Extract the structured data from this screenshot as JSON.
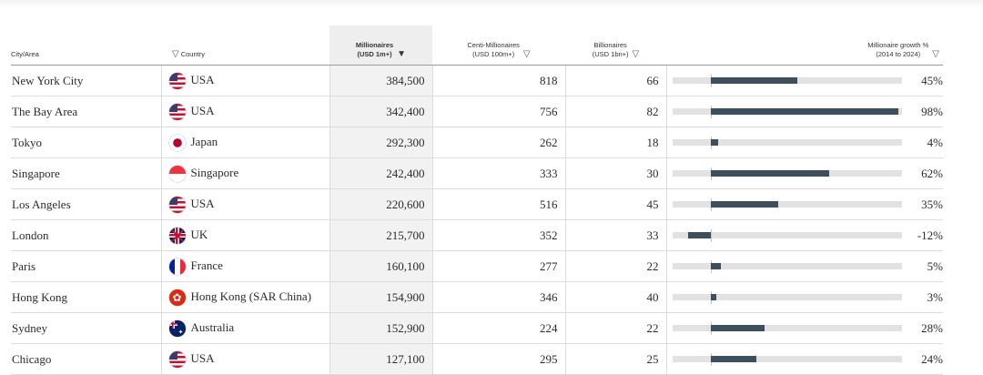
{
  "header": {
    "city": "City/Area",
    "country": "Country",
    "millionaires": [
      "Millionaires",
      "(USD 1m+)"
    ],
    "centi": [
      "Centi-Millionaires",
      "(USD 100m+)"
    ],
    "billionaires": [
      "Billionaires",
      "(USD 1bn+)"
    ],
    "growth": [
      "Millionaire growth %",
      "(2014 to 2024)"
    ],
    "sort_icon": "▽",
    "sorted_icon": "▼"
  },
  "growth_scale": {
    "min_percent": -20,
    "max_percent": 100
  },
  "rows": [
    {
      "city": "New York City",
      "flag": "flag-usa",
      "country": "USA",
      "millionaires": "384,500",
      "centi": "818",
      "billionaires": "66",
      "growth": "45%",
      "growth_value": 45
    },
    {
      "city": "The Bay Area",
      "flag": "flag-usa",
      "country": "USA",
      "millionaires": "342,400",
      "centi": "756",
      "billionaires": "82",
      "growth": "98%",
      "growth_value": 98
    },
    {
      "city": "Tokyo",
      "flag": "flag-japan",
      "country": "Japan",
      "millionaires": "292,300",
      "centi": "262",
      "billionaires": "18",
      "growth": "4%",
      "growth_value": 4
    },
    {
      "city": "Singapore",
      "flag": "flag-singapore",
      "country": "Singapore",
      "millionaires": "242,400",
      "centi": "333",
      "billionaires": "30",
      "growth": "62%",
      "growth_value": 62
    },
    {
      "city": "Los Angeles",
      "flag": "flag-usa",
      "country": "USA",
      "millionaires": "220,600",
      "centi": "516",
      "billionaires": "45",
      "growth": "35%",
      "growth_value": 35
    },
    {
      "city": "London",
      "flag": "flag-uk",
      "country": "UK",
      "millionaires": "215,700",
      "centi": "352",
      "billionaires": "33",
      "growth": "-12%",
      "growth_value": -12
    },
    {
      "city": "Paris",
      "flag": "flag-france",
      "country": "France",
      "millionaires": "160,100",
      "centi": "277",
      "billionaires": "22",
      "growth": "5%",
      "growth_value": 5
    },
    {
      "city": "Hong Kong",
      "flag": "flag-hk",
      "country": "Hong Kong (SAR China)",
      "millionaires": "154,900",
      "centi": "346",
      "billionaires": "40",
      "growth": "3%",
      "growth_value": 3
    },
    {
      "city": "Sydney",
      "flag": "flag-australia",
      "country": "Australia",
      "millionaires": "152,900",
      "centi": "224",
      "billionaires": "22",
      "growth": "28%",
      "growth_value": 28
    },
    {
      "city": "Chicago",
      "flag": "flag-usa",
      "country": "USA",
      "millionaires": "127,100",
      "centi": "295",
      "billionaires": "25",
      "growth": "24%",
      "growth_value": 24
    }
  ],
  "colors": {
    "bar": "#3d4e5c",
    "track": "#e2e2e2",
    "sorted_column": "#eeeeee"
  }
}
